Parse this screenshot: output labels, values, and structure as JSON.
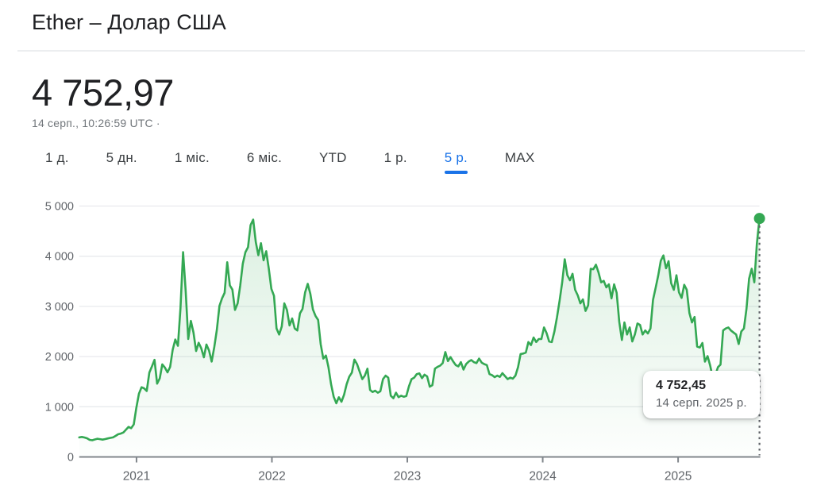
{
  "header": {
    "title": "Ether – Долар США"
  },
  "quote": {
    "price": "4 752,97",
    "timestamp": "14 серп., 10:26:59 UTC ·"
  },
  "range_tabs": [
    {
      "label": "1 д.",
      "active": false
    },
    {
      "label": "5 дн.",
      "active": false
    },
    {
      "label": "1 міс.",
      "active": false
    },
    {
      "label": "6 міс.",
      "active": false
    },
    {
      "label": "YTD",
      "active": false
    },
    {
      "label": "1 р.",
      "active": false
    },
    {
      "label": "5 р.",
      "active": true
    },
    {
      "label": "MAX",
      "active": false
    }
  ],
  "tooltip": {
    "price": "4 752,45",
    "date": "14 серп. 2025 р."
  },
  "colors": {
    "line": "#34a853",
    "fill_top": "rgba(52,168,83,0.18)",
    "fill_bottom": "rgba(52,168,83,0.01)",
    "accent": "#1a73e8",
    "grid": "#e8eaed",
    "axis": "#80868b",
    "label": "#5f6368",
    "text": "#202124",
    "muted": "#70757a",
    "marker_line": "#5f6368"
  },
  "chart_data": {
    "type": "area",
    "title": "Ether – Долар США",
    "xlabel": "",
    "ylabel": "USD",
    "x_start": 2020.577,
    "x_end": 2025.601,
    "x_ticks": [
      2021,
      2022,
      2023,
      2024,
      2025
    ],
    "x_tick_labels": [
      "2021",
      "2022",
      "2023",
      "2024",
      "2025"
    ],
    "y_ticks": [
      0,
      1000,
      2000,
      3000,
      4000,
      5000
    ],
    "y_tick_labels": [
      "0",
      "1 000",
      "2 000",
      "3 000",
      "4 000",
      "5 000"
    ],
    "ylim": [
      0,
      5000
    ],
    "grid": true,
    "legend": false,
    "last_point": {
      "x": 2025.601,
      "y": 4752.45
    },
    "values": [
      390,
      398,
      388,
      372,
      340,
      332,
      348,
      362,
      354,
      345,
      356,
      368,
      379,
      390,
      420,
      452,
      465,
      488,
      545,
      598,
      572,
      648,
      978,
      1260,
      1390,
      1365,
      1315,
      1680,
      1805,
      1935,
      1460,
      1565,
      1845,
      1780,
      1685,
      1795,
      2135,
      2340,
      2215,
      2960,
      4080,
      3300,
      2350,
      2710,
      2480,
      2110,
      2275,
      2165,
      1985,
      2240,
      2120,
      1900,
      2190,
      2530,
      3010,
      3162,
      3270,
      3880,
      3420,
      3335,
      2930,
      3060,
      3420,
      3850,
      4080,
      4180,
      4620,
      4730,
      4280,
      4020,
      4260,
      3920,
      4100,
      3760,
      3350,
      3210,
      2560,
      2440,
      2600,
      3060,
      2930,
      2620,
      2760,
      2560,
      2520,
      2860,
      2950,
      3280,
      3450,
      3250,
      2940,
      2810,
      2730,
      2250,
      1960,
      2020,
      1790,
      1450,
      1200,
      1070,
      1190,
      1100,
      1240,
      1450,
      1600,
      1680,
      1940,
      1850,
      1700,
      1550,
      1620,
      1760,
      1335,
      1295,
      1320,
      1280,
      1310,
      1550,
      1620,
      1580,
      1220,
      1170,
      1280,
      1190,
      1220,
      1200,
      1215,
      1410,
      1550,
      1580,
      1650,
      1665,
      1570,
      1640,
      1605,
      1400,
      1430,
      1760,
      1795,
      1820,
      1870,
      2090,
      1910,
      1990,
      1905,
      1830,
      1805,
      1890,
      1740,
      1850,
      1900,
      1930,
      1890,
      1870,
      1960,
      1880,
      1850,
      1830,
      1650,
      1630,
      1590,
      1620,
      1595,
      1670,
      1610,
      1550,
      1580,
      1560,
      1620,
      1790,
      2050,
      2060,
      2080,
      2290,
      2230,
      2380,
      2290,
      2350,
      2350,
      2580,
      2470,
      2300,
      2290,
      2500,
      2780,
      3110,
      3480,
      3940,
      3620,
      3520,
      3650,
      3330,
      3220,
      3060,
      3140,
      2910,
      3020,
      3750,
      3740,
      3830,
      3680,
      3480,
      3510,
      3380,
      3440,
      3160,
      3440,
      3270,
      2690,
      2330,
      2680,
      2440,
      2580,
      2300,
      2440,
      2660,
      2630,
      2440,
      2520,
      2460,
      2560,
      3130,
      3370,
      3620,
      3910,
      4016,
      3760,
      3900,
      3460,
      3330,
      3620,
      3280,
      3170,
      3430,
      3330,
      2870,
      2680,
      2790,
      2200,
      2180,
      2270,
      1900,
      2010,
      1820,
      1580,
      1630,
      1790,
      1840,
      2520,
      2560,
      2580,
      2520,
      2480,
      2440,
      2250,
      2500,
      2560,
      2950,
      3550,
      3750,
      3480,
      4250,
      4752.45
    ]
  }
}
